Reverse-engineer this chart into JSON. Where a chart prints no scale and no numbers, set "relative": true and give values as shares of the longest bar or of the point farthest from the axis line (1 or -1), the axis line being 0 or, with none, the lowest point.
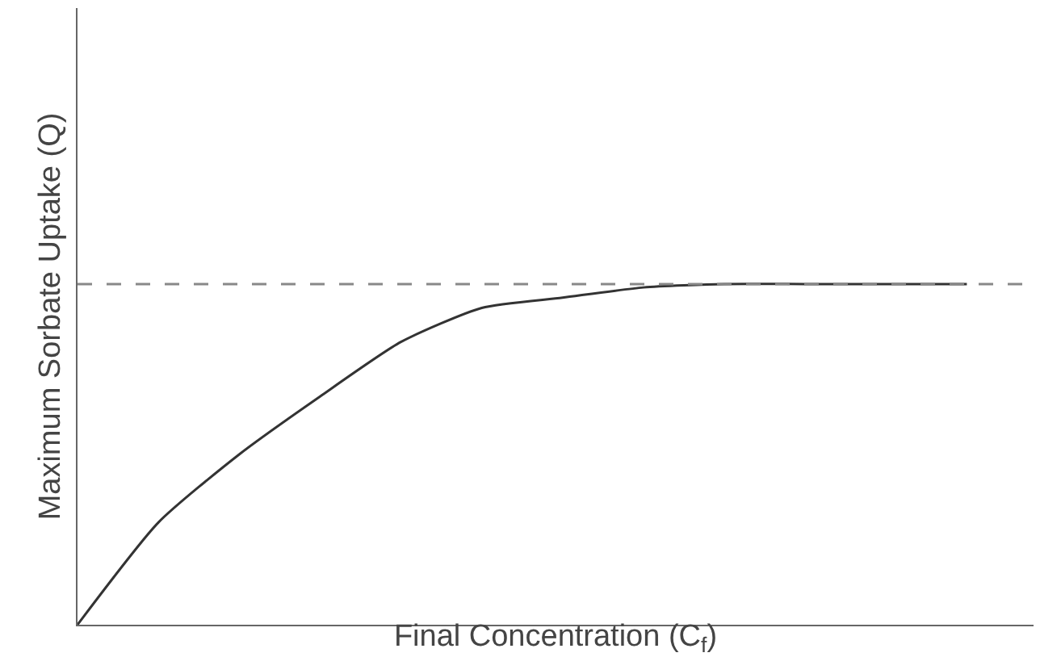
{
  "chart_data": {
    "type": "line",
    "relative": true,
    "xlabel": "Final Concentration (C$_{f}$)",
    "ylabel": "Maximum Sorbate Uptake (Q)",
    "categories": [
      null,
      null,
      null,
      null,
      null,
      null,
      null,
      null,
      null,
      null,
      null,
      null
    ],
    "series": [
      {
        "color": "#333333",
        "values": [
          0,
          0.3,
          0.5,
          0.67,
          0.83,
          0.93,
          0.96,
          0.99,
          1,
          1,
          1,
          1
        ]
      }
    ],
    "ref_lines": [
      {
        "axis": "y",
        "value": 1,
        "color": "#888888",
        "line_style": "dashed"
      }
    ],
    "marker": "none",
    "line_style": "solid"
  }
}
